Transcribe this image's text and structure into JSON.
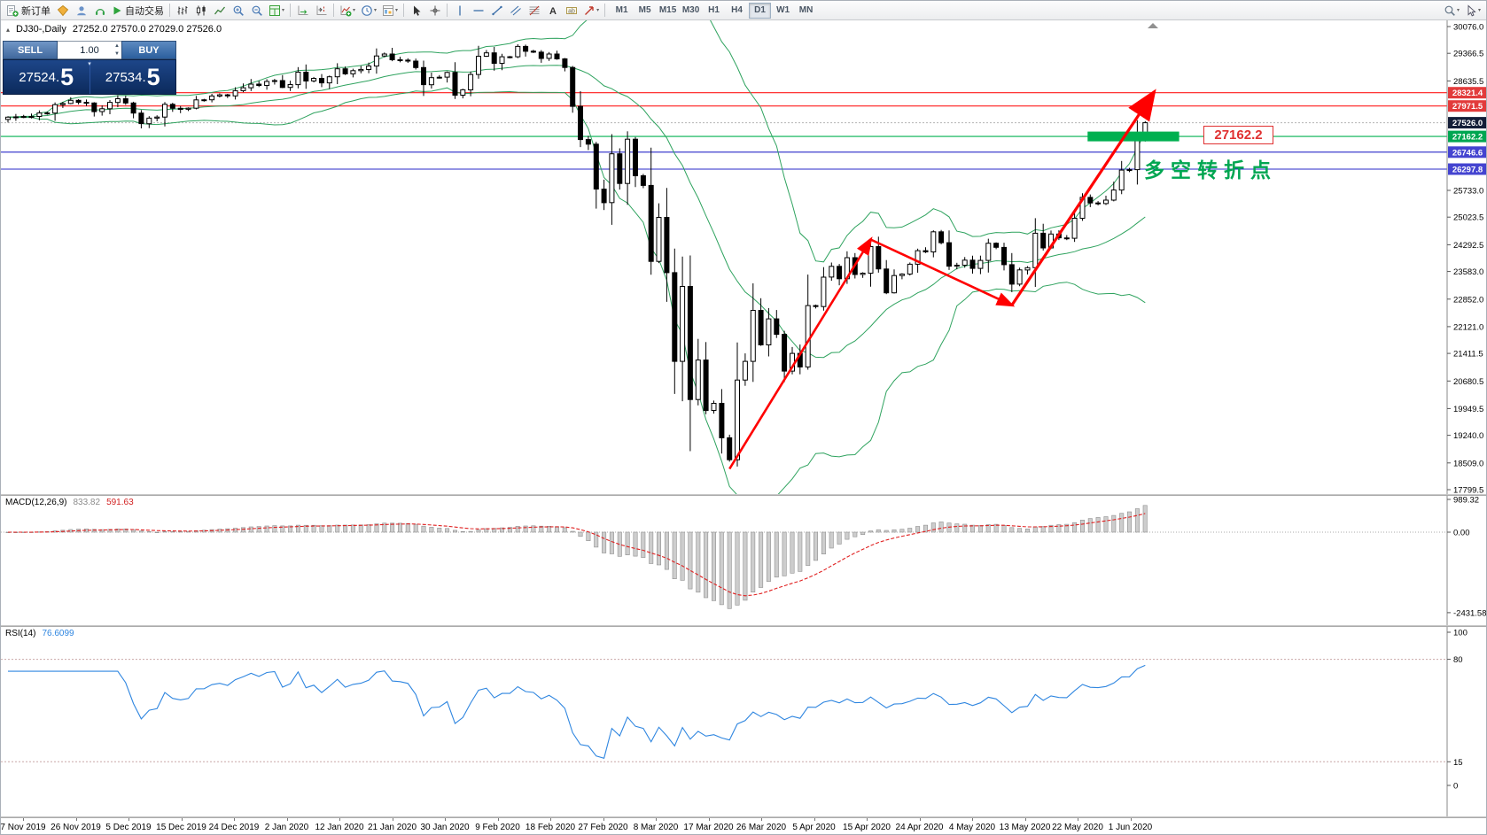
{
  "toolbar": {
    "new_order_label": "新订单",
    "auto_trading_label": "自动交易",
    "timeframes": [
      "M1",
      "M5",
      "M15",
      "M30",
      "H1",
      "H4",
      "D1",
      "W1",
      "MN"
    ],
    "active_timeframe": "D1"
  },
  "chart_header": {
    "symbol_period": "DJ30-,Daily",
    "ohlc": "27252.0 27570.0 27029.0 27526.0"
  },
  "one_click": {
    "sell_label": "SELL",
    "buy_label": "BUY",
    "volume": "1.00",
    "sell_price": "27524.5",
    "buy_price": "27534.5"
  },
  "macd_panel": {
    "label": "MACD(12,26,9)",
    "main_value": "833.82",
    "signal_value": "591.63",
    "axis_labels": [
      "989.32",
      "0.00",
      "-2431.58"
    ]
  },
  "rsi_panel": {
    "label": "RSI(14)",
    "value": "76.6099",
    "axis_labels": [
      "100",
      "80",
      "15",
      "0"
    ]
  },
  "annotations": {
    "pivot_label": "27162.2",
    "turning_point_text": "多空转折点"
  },
  "time_axis": [
    "7 Nov 2019",
    "26 Nov 2019",
    "5 Dec 2019",
    "15 Dec 2019",
    "24 Dec 2019",
    "2 Jan 2020",
    "12 Jan 2020",
    "21 Jan 2020",
    "30 Jan 2020",
    "9 Feb 2020",
    "18 Feb 2020",
    "27 Feb 2020",
    "8 Mar 2020",
    "17 Mar 2020",
    "26 Mar 2020",
    "5 Apr 2020",
    "15 Apr 2020",
    "24 Apr 2020",
    "4 May 2020",
    "13 May 2020",
    "22 May 2020",
    "1 Jun 2020"
  ],
  "colors": {
    "bull_candle": "#ffffff",
    "bear_candle": "#000000",
    "candle_outline": "#000000",
    "bands": "#2fa35f",
    "macd_hist_fill": "#cdcdcd",
    "macd_hist_stroke": "#8f8f8f",
    "macd_signal": "#e02020",
    "rsi_line": "#2f86e0",
    "rsi_levels": "#c9a8a8",
    "trend_arrow": "#ff0000",
    "pivot_zone": "#00b050",
    "turning_text": "#00a651"
  },
  "chart_data": {
    "type": "candlestick",
    "symbol": "DJ30-",
    "timeframe": "Daily",
    "y_range": [
      17799.5,
      30076.0
    ],
    "y_axis_ticks": [
      "30076.0",
      "29366.5",
      "28635.5",
      "25733.0",
      "25023.5",
      "24292.5",
      "23583.0",
      "22852.0",
      "22121.0",
      "21411.5",
      "20680.5",
      "19949.5",
      "19240.0",
      "18509.0",
      "17799.5"
    ],
    "last_ohlc": {
      "open": 27252.0,
      "high": 27570.0,
      "low": 27029.0,
      "close": 27526.0
    },
    "closes": [
      27674,
      27681,
      27691,
      27692,
      27784,
      27782,
      28005,
      28036,
      28121,
      28067,
      28051,
      27822,
      27897,
      28066,
      28164,
      28051,
      27783,
      27503,
      27650,
      27678,
      28015,
      27910,
      27882,
      27911,
      28132,
      28135,
      28235,
      28267,
      28239,
      28377,
      28455,
      28551,
      28515,
      28621,
      28645,
      28462,
      28538,
      28868,
      28634,
      28703,
      28583,
      28745,
      28956,
      28823,
      28907,
      28939,
      29030,
      29297,
      29348,
      29196,
      29186,
      29160,
      28989,
      28535,
      28722,
      28734,
      28859,
      28256,
      28399,
      28807,
      29290,
      29379,
      29102,
      29276,
      29276,
      29551,
      29423,
      29398,
      29232,
      29348,
      29220,
      28992,
      27961,
      27081,
      26958,
      25767,
      25409,
      26703,
      25917,
      27091,
      26121,
      25865,
      23851,
      25018,
      23553,
      21201,
      23186,
      20189,
      21237,
      19899,
      20087,
      19174,
      18592,
      20705,
      21200,
      22552,
      21637,
      22327,
      21917,
      20944,
      21413,
      21053,
      22680,
      22654,
      23434,
      23719,
      23391,
      23950,
      23504,
      23538,
      24242,
      23650,
      23019,
      23476,
      23515,
      23775,
      24134,
      24102,
      24634,
      24346,
      23724,
      23750,
      23883,
      23665,
      23876,
      24331,
      24222,
      23765,
      23248,
      23625,
      23685,
      24597,
      24207,
      24576,
      24474,
      24465,
      24995,
      25548,
      25401,
      25383,
      25475,
      25743,
      26270,
      26282,
      27111,
      27526
    ],
    "levels": [
      {
        "label": "28321.4",
        "value": 28321.4,
        "line_color": "#ff1a1a",
        "chip_color": "#e23b3b",
        "dashed": false
      },
      {
        "label": "27971.5",
        "value": 27971.5,
        "line_color": "#ff1a1a",
        "chip_color": "#e23b3b",
        "dashed": false
      },
      {
        "label": "27526.0",
        "value": 27526.0,
        "line_color": "#bdbdbd",
        "chip_color": "#141e38",
        "dashed": true
      },
      {
        "label": "27162.2",
        "value": 27162.2,
        "line_color": "#00b050",
        "chip_color": "#00a651",
        "dashed": false
      },
      {
        "label": "26746.6",
        "value": 26746.6,
        "line_color": "#2a2ac8",
        "chip_color": "#4444d0",
        "dashed": false
      },
      {
        "label": "26297.8",
        "value": 26297.8,
        "line_color": "#2a2ac8",
        "chip_color": "#4444d0",
        "dashed": false
      }
    ],
    "indicators": {
      "bollinger": {
        "period": 20,
        "deviation": 2
      },
      "macd": {
        "fast": 12,
        "slow": 26,
        "signal": 9,
        "current_main": 833.82,
        "current_signal": 591.63,
        "scale_max": 989.32,
        "scale_min": -2431.58
      },
      "rsi": {
        "period": 14,
        "current": 76.6099,
        "levels": [
          80,
          15
        ],
        "range": [
          0,
          100
        ]
      }
    },
    "trend_arrows": [
      {
        "from_index": 92,
        "from_price": 18350,
        "to_index": 110,
        "to_price": 24430
      },
      {
        "from_index": 110,
        "from_price": 24430,
        "to_index": 128,
        "to_price": 22690
      },
      {
        "from_index": 128,
        "from_price": 22690,
        "to_index": 146,
        "to_price": 28300
      }
    ],
    "pivot_zone": {
      "from_index": 138,
      "to_index": 149,
      "price": 27162.2
    }
  }
}
